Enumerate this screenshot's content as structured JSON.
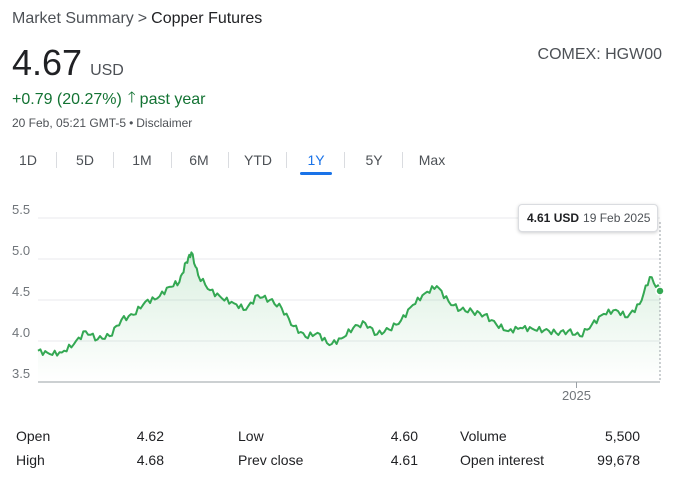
{
  "breadcrumb": {
    "parent": "Market Summary",
    "separator": ">",
    "current": "Copper Futures"
  },
  "quote": {
    "price": "4.67",
    "currency": "USD",
    "exchange": "COMEX: HGW00",
    "change": "+0.79 (20.27%)",
    "change_arrow": "🡑",
    "change_period": "past year",
    "timestamp": "20 Feb, 05:21 GMT-5",
    "timestamp_sep": "•",
    "disclaimer": "Disclaimer",
    "accent_color": "#137333"
  },
  "tabs": [
    {
      "label": "1D",
      "active": false
    },
    {
      "label": "5D",
      "active": false
    },
    {
      "label": "1M",
      "active": false
    },
    {
      "label": "6M",
      "active": false
    },
    {
      "label": "YTD",
      "active": false
    },
    {
      "label": "1Y",
      "active": true
    },
    {
      "label": "5Y",
      "active": false
    },
    {
      "label": "Max",
      "active": false
    }
  ],
  "tooltip": {
    "value": "4.61 USD",
    "date": "19 Feb 2025"
  },
  "chart_data": {
    "type": "line",
    "ylim": [
      3.5,
      5.5
    ],
    "yticks": [
      "5.5",
      "5.0",
      "4.5",
      "4.0",
      "3.5"
    ],
    "xtick_labels": [
      "2025"
    ],
    "grid": true,
    "line_color": "#34a853",
    "series": [
      {
        "x": [
          "2024-02-20",
          "2024-02-27",
          "2024-03-05",
          "2024-03-12",
          "2024-03-19",
          "2024-03-26",
          "2024-04-02",
          "2024-04-09",
          "2024-04-16",
          "2024-04-23",
          "2024-04-30",
          "2024-05-07",
          "2024-05-13",
          "2024-05-17",
          "2024-05-20",
          "2024-05-24",
          "2024-05-31",
          "2024-06-07",
          "2024-06-14",
          "2024-06-21",
          "2024-06-28",
          "2024-07-05",
          "2024-07-12",
          "2024-07-19",
          "2024-07-26",
          "2024-08-02",
          "2024-08-09",
          "2024-08-16",
          "2024-08-23",
          "2024-08-30",
          "2024-09-06",
          "2024-09-13",
          "2024-09-20",
          "2024-09-27",
          "2024-10-04",
          "2024-10-11",
          "2024-10-18",
          "2024-10-25",
          "2024-11-01",
          "2024-11-08",
          "2024-11-15",
          "2024-11-22",
          "2024-11-29",
          "2024-12-06",
          "2024-12-13",
          "2024-12-20",
          "2024-12-27",
          "2025-01-03",
          "2025-01-10",
          "2025-01-17",
          "2025-01-24",
          "2025-01-31",
          "2025-02-07",
          "2025-02-13",
          "2025-02-19"
        ],
        "values": [
          3.88,
          3.84,
          3.86,
          3.96,
          4.12,
          4.02,
          4.06,
          4.26,
          4.32,
          4.48,
          4.52,
          4.66,
          4.72,
          4.96,
          5.08,
          4.8,
          4.62,
          4.52,
          4.46,
          4.38,
          4.56,
          4.5,
          4.4,
          4.18,
          4.05,
          4.1,
          3.95,
          4.03,
          4.16,
          4.22,
          4.08,
          4.14,
          4.25,
          4.44,
          4.58,
          4.67,
          4.48,
          4.38,
          4.36,
          4.32,
          4.2,
          4.12,
          4.16,
          4.15,
          4.13,
          4.1,
          4.12,
          4.06,
          4.2,
          4.33,
          4.38,
          4.29,
          4.45,
          4.78,
          4.61
        ]
      }
    ]
  },
  "stats": {
    "open_label": "Open",
    "open": "4.62",
    "high_label": "High",
    "high": "4.68",
    "low_label": "Low",
    "low": "4.60",
    "prev_close_label": "Prev close",
    "prev_close": "4.61",
    "volume_label": "Volume",
    "volume": "5,500",
    "open_interest_label": "Open interest",
    "open_interest": "99,678"
  }
}
